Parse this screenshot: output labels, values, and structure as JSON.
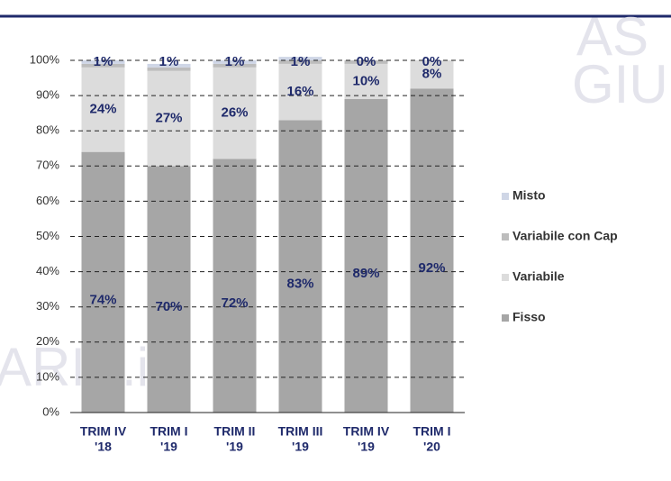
{
  "chart_data": {
    "type": "stacked_bar",
    "categories": [
      [
        "TRIM IV",
        "'18"
      ],
      [
        "TRIM I",
        "'19"
      ],
      [
        "TRIM II",
        "'19"
      ],
      [
        "TRIM III",
        "'19"
      ],
      [
        "TRIM IV",
        "'19"
      ],
      [
        "TRIM I",
        "'20"
      ]
    ],
    "series": [
      {
        "name": "Fisso",
        "color": "#a6a6a6",
        "values": [
          74,
          70,
          72,
          83,
          89,
          92
        ],
        "value_labels": [
          "74%",
          "70%",
          "72%",
          "83%",
          "89%",
          "92%"
        ]
      },
      {
        "name": "Variabile",
        "color": "#dcdcdc",
        "values": [
          24,
          27,
          26,
          16,
          10,
          8
        ],
        "value_labels": [
          "24%",
          "27%",
          "26%",
          "16%",
          "10%",
          "8%"
        ]
      },
      {
        "name": "Variabile con Cap",
        "color": "#bdbdbd",
        "values": [
          1,
          1,
          1,
          1,
          1,
          0
        ]
      },
      {
        "name": "Misto",
        "color": "#cfd6e6",
        "values": [
          1,
          1,
          1,
          1,
          0,
          0
        ],
        "value_labels": [
          "1%",
          "1%",
          "1%",
          "1%",
          "0%",
          "0%"
        ]
      }
    ],
    "ylim": [
      0,
      100
    ],
    "yticks": [
      {
        "value": 0,
        "label": "0%"
      },
      {
        "value": 10,
        "label": "10%"
      },
      {
        "value": 20,
        "label": "20%"
      },
      {
        "value": 30,
        "label": "30%"
      },
      {
        "value": 40,
        "label": "40%"
      },
      {
        "value": 50,
        "label": "50%"
      },
      {
        "value": 60,
        "label": "60%"
      },
      {
        "value": 70,
        "label": "70%"
      },
      {
        "value": 80,
        "label": "80%"
      },
      {
        "value": 90,
        "label": "90%"
      },
      {
        "value": 100,
        "label": "100%"
      }
    ],
    "grid": true,
    "legend": "right",
    "watermark": [
      "AS",
      "GIUD",
      "ARIE.it"
    ]
  }
}
